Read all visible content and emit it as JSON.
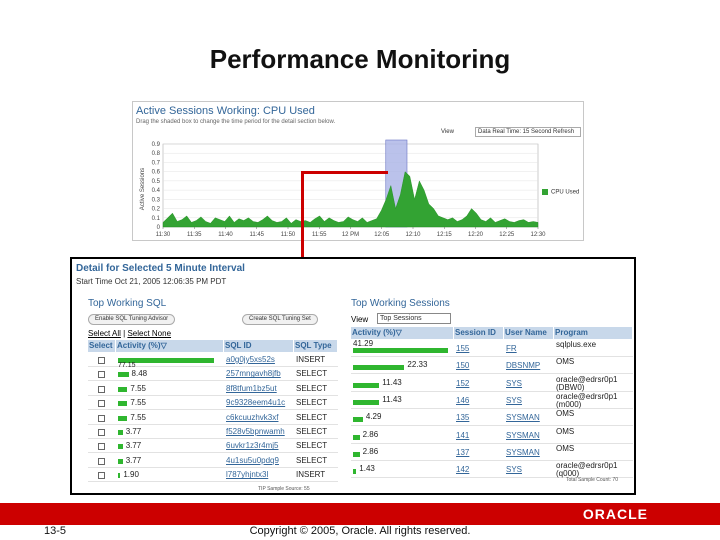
{
  "slide": {
    "title": "Performance Monitoring",
    "slide_number": "13-5",
    "copyright": "Copyright © 2005, Oracle. All rights reserved.",
    "logo": "ORACLE",
    "accent_color": "#cc0000"
  },
  "top_panel": {
    "title": "Active Sessions Working: CPU Used",
    "subtitle": "Drag the shaded box to change the time period for the detail section below.",
    "view_label": "View",
    "view_value": "Data Real Time: 15 Second Refresh",
    "y_axis_label": "Active Sessions",
    "legend": "CPU Used",
    "series_color": "#33a333"
  },
  "chart_data": {
    "type": "area",
    "title": "Active Sessions Working: CPU Used",
    "ylabel": "Active Sessions",
    "ylim": [
      0,
      0.9
    ],
    "yticks": [
      "0.9",
      "0.8",
      "0.7",
      "0.6",
      "0.5",
      "0.4",
      "0.3",
      "0.2",
      "0.1",
      "0"
    ],
    "xticks": [
      "11:30",
      "11:35",
      "11:40",
      "11:45",
      "11:50",
      "11:55",
      "12 PM",
      "12:05",
      "12:10",
      "12:15",
      "12:20",
      "12:25",
      "12:30"
    ],
    "selected_window": [
      "12:05",
      "12:10"
    ],
    "series": [
      {
        "name": "CPU Used",
        "values": [
          0.05,
          0.1,
          0.15,
          0.06,
          0.08,
          0.12,
          0.05,
          0.07,
          0.11,
          0.06,
          0.04,
          0.1,
          0.08,
          0.06,
          0.12,
          0.05,
          0.09,
          0.07,
          0.1,
          0.06,
          0.05,
          0.08,
          0.12,
          0.07,
          0.05,
          0.06,
          0.1,
          0.04,
          0.08,
          0.06,
          0.07,
          0.05,
          0.09,
          0.12,
          0.06,
          0.1,
          0.07,
          0.05,
          0.06,
          0.11,
          0.08,
          0.06,
          0.1,
          0.05,
          0.07,
          0.09,
          0.18,
          0.3,
          0.45,
          0.2,
          0.35,
          0.6,
          0.55,
          0.3,
          0.5,
          0.4,
          0.25,
          0.2,
          0.12,
          0.1,
          0.08,
          0.1,
          0.06,
          0.08,
          0.12,
          0.2,
          0.15,
          0.08,
          0.06,
          0.1,
          0.05,
          0.07,
          0.09,
          0.06,
          0.05,
          0.07,
          0.08,
          0.05,
          0.06,
          0.05
        ]
      }
    ]
  },
  "detail": {
    "title": "Detail for Selected 5 Minute Interval",
    "start_time": "Start Time  Oct 21, 2005 12:06:35 PM PDT",
    "sql_section": {
      "title": "Top Working SQL",
      "toggle_enable": "Enable SQL Tuning Advisor",
      "toggle_create": "Create SQL Tuning Set",
      "select_all": "Select All",
      "select_none": "Select None",
      "headers": [
        "Select",
        "Activity (%)▽",
        "SQL ID",
        "SQL Type"
      ],
      "rows": [
        {
          "activity": 77.15,
          "label": "77.15",
          "sql_id": "a0g0jy5xs52s",
          "sql_type": "INSERT"
        },
        {
          "activity": 8.48,
          "label": "8.48",
          "sql_id": "257mngavh8jfb",
          "sql_type": "SELECT"
        },
        {
          "activity": 7.55,
          "label": "7.55",
          "sql_id": "8f8tfum1bz5ut",
          "sql_type": "SELECT"
        },
        {
          "activity": 7.55,
          "label": "7.55",
          "sql_id": "9c9328eem4u1c",
          "sql_type": "SELECT"
        },
        {
          "activity": 7.55,
          "label": "7.55",
          "sql_id": "c6kcuuzhvk3xf",
          "sql_type": "SELECT"
        },
        {
          "activity": 3.77,
          "label": "3.77",
          "sql_id": "f528v5bpnwamh",
          "sql_type": "SELECT"
        },
        {
          "activity": 3.77,
          "label": "3.77",
          "sql_id": "6uvkr1z3r4mj5",
          "sql_type": "SELECT"
        },
        {
          "activity": 3.77,
          "label": "3.77",
          "sql_id": "4u1su5u0pdq9",
          "sql_type": "SELECT"
        },
        {
          "activity": 1.9,
          "label": "1.90",
          "sql_id": "l787yhjntx3l",
          "sql_type": "INSERT"
        }
      ],
      "note": "TIP Sample Source: 55"
    },
    "sessions_section": {
      "title": "Top Working Sessions",
      "view_label": "View",
      "view_value": "Top Sessions",
      "headers": [
        "Activity (%)▽",
        "Session ID",
        "User Name",
        "Program"
      ],
      "rows": [
        {
          "activity": 41.29,
          "label": "41.29",
          "session_id": "155",
          "user": "FR",
          "program": "sqlplus.exe"
        },
        {
          "activity": 22.33,
          "label": "22.33",
          "session_id": "150",
          "user": "DBSNMP",
          "program": "OMS"
        },
        {
          "activity": 11.43,
          "label": "11.43",
          "session_id": "152",
          "user": "SYS",
          "program": "oracle@edrsr0p1 (DBW0)"
        },
        {
          "activity": 11.43,
          "label": "11.43",
          "session_id": "146",
          "user": "SYS",
          "program": "oracle@edrsr0p1 (m000)"
        },
        {
          "activity": 4.29,
          "label": "4.29",
          "session_id": "135",
          "user": "SYSMAN",
          "program": "OMS"
        },
        {
          "activity": 2.86,
          "label": "2.86",
          "session_id": "141",
          "user": "SYSMAN",
          "program": "OMS"
        },
        {
          "activity": 2.86,
          "label": "2.86",
          "session_id": "137",
          "user": "SYSMAN",
          "program": "OMS"
        },
        {
          "activity": 1.43,
          "label": "1.43",
          "session_id": "142",
          "user": "SYS",
          "program": "oracle@edrsr0p1 (q000)"
        }
      ],
      "note": "Total Sample Count: 70"
    }
  }
}
